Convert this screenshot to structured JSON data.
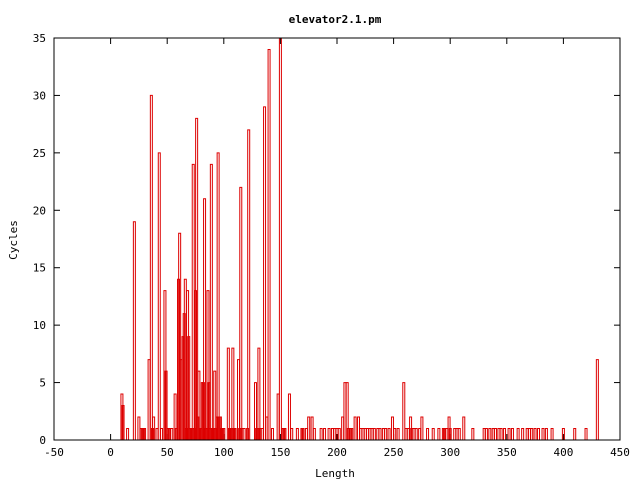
{
  "chart_data": {
    "type": "bar",
    "title": "elevator2.1.pm",
    "xlabel": "Length",
    "ylabel": "Cycles",
    "xlim": [
      -50,
      450
    ],
    "ylim": [
      0,
      35
    ],
    "x_ticks": [
      "-50",
      "0",
      "50",
      "100",
      "150",
      "200",
      "250",
      "300",
      "350",
      "400",
      "450"
    ],
    "y_ticks": [
      "0",
      "5",
      "10",
      "15",
      "20",
      "25",
      "30",
      "35"
    ],
    "grid": false,
    "bar_color": "#dd0000",
    "series": [
      {
        "x": [
          10,
          11,
          15,
          21,
          25,
          27,
          28,
          29,
          30,
          34,
          36,
          37,
          38,
          41,
          43,
          45,
          48,
          49,
          51,
          52,
          54,
          57,
          58,
          60,
          61,
          62,
          64,
          65,
          66,
          67,
          68,
          69,
          70,
          71,
          72,
          73,
          74,
          75,
          76,
          77,
          78,
          79,
          80,
          81,
          82,
          83,
          84,
          85,
          86,
          87,
          88,
          89,
          90,
          91,
          92,
          93,
          94,
          95,
          96,
          97,
          98,
          99,
          100,
          104,
          105,
          106,
          107,
          108,
          109,
          110,
          113,
          114,
          115,
          116,
          118,
          121,
          122,
          128,
          129,
          130,
          131,
          132,
          134,
          136,
          138,
          140,
          143,
          148,
          150,
          152,
          153,
          154,
          158,
          160,
          165,
          169,
          170,
          173,
          175,
          178,
          180,
          186,
          189,
          193,
          196,
          198,
          200,
          202,
          205,
          207,
          209,
          210,
          212,
          213,
          216,
          219,
          221,
          223,
          225,
          227,
          229,
          231,
          233,
          236,
          238,
          241,
          243,
          246,
          249,
          251,
          254,
          259,
          261,
          263,
          265,
          266,
          268,
          270,
          273,
          275,
          280,
          285,
          290,
          294,
          295,
          297,
          299,
          300,
          304,
          306,
          308,
          312,
          320,
          330,
          332,
          335,
          338,
          340,
          343,
          345,
          348,
          352,
          355,
          360,
          364,
          368,
          370,
          372,
          375,
          378,
          382,
          385,
          390,
          400,
          410,
          420,
          430
        ],
        "values": [
          4,
          3,
          1,
          19,
          2,
          1,
          1,
          1,
          1,
          7,
          30,
          1,
          2,
          1,
          25,
          1,
          13,
          6,
          1,
          1,
          1,
          4,
          1,
          14,
          18,
          7,
          9,
          11,
          14,
          1,
          13,
          9,
          1,
          1,
          1,
          24,
          1,
          13,
          28,
          2,
          6,
          1,
          1,
          5,
          5,
          21,
          1,
          1,
          13,
          5,
          1,
          24,
          1,
          1,
          6,
          1,
          2,
          25,
          2,
          2,
          1,
          1,
          1,
          8,
          1,
          1,
          1,
          8,
          1,
          1,
          7,
          1,
          22,
          1,
          1,
          1,
          27,
          5,
          1,
          1,
          8,
          1,
          1,
          29,
          2,
          34,
          1,
          4,
          35,
          1,
          1,
          1,
          4,
          1,
          1,
          1,
          1,
          1,
          2,
          2,
          1,
          1,
          1,
          1,
          1,
          1,
          1,
          1,
          2,
          5,
          5,
          1,
          1,
          1,
          2,
          2,
          1,
          1,
          1,
          1,
          1,
          1,
          1,
          1,
          1,
          1,
          1,
          1,
          2,
          1,
          1,
          5,
          1,
          1,
          2,
          1,
          1,
          1,
          1,
          2,
          1,
          1,
          1,
          1,
          1,
          1,
          2,
          1,
          1,
          1,
          1,
          2,
          1,
          1,
          1,
          1,
          1,
          1,
          1,
          1,
          1,
          1,
          1,
          1,
          1,
          1,
          1,
          1,
          1,
          1,
          1,
          1,
          1,
          1,
          1,
          1,
          7
        ]
      }
    ]
  }
}
